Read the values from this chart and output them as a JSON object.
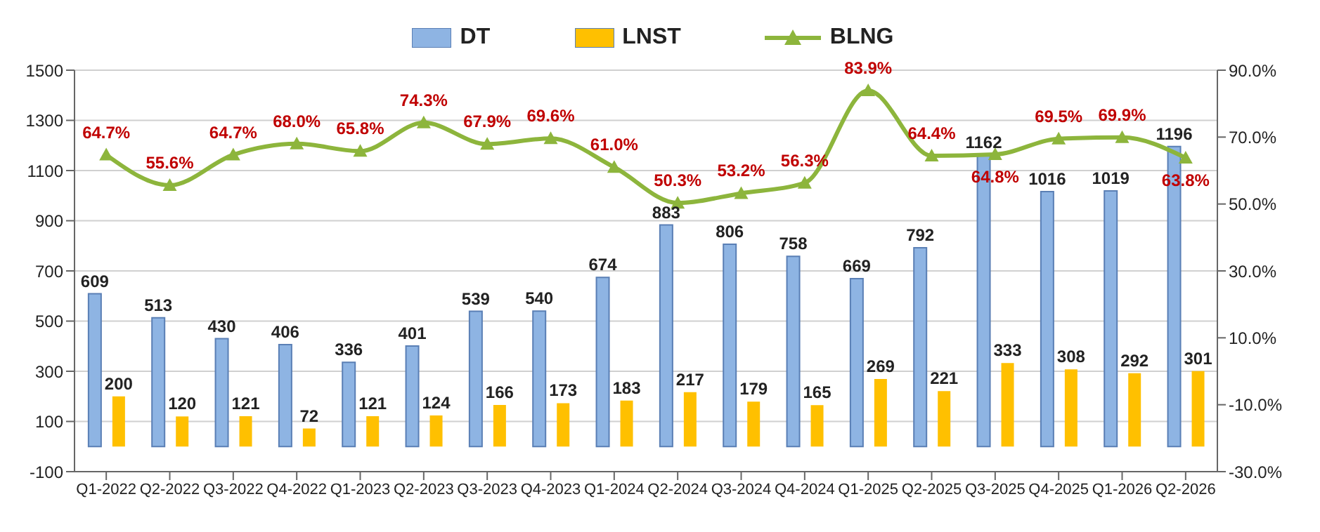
{
  "chart_data": {
    "type": "bar",
    "categories": [
      "Q1-2022",
      "Q2-2022",
      "Q3-2022",
      "Q4-2022",
      "Q1-2023",
      "Q2-2023",
      "Q3-2023",
      "Q4-2023",
      "Q1-2024",
      "Q2-2024",
      "Q3-2024",
      "Q4-2024",
      "Q1-2025",
      "Q2-2025",
      "Q3-2025",
      "Q4-2025",
      "Q1-2026",
      "Q2-2026"
    ],
    "series": [
      {
        "name": "DT",
        "color": "#8eb4e3",
        "values": [
          609,
          513,
          430,
          406,
          336,
          401,
          539,
          540,
          674,
          883,
          806,
          758,
          669,
          792,
          1162,
          1016,
          1019,
          1196
        ]
      },
      {
        "name": "LNST",
        "color": "#ffc000",
        "values": [
          200,
          120,
          121,
          72,
          121,
          124,
          166,
          173,
          183,
          217,
          179,
          165,
          269,
          221,
          333,
          308,
          292,
          301
        ]
      },
      {
        "name": "BLNG",
        "type": "line",
        "axis": "y2",
        "color": "#8db53c",
        "marker": "triangle",
        "values": [
          64.7,
          55.6,
          64.7,
          68.0,
          65.8,
          74.3,
          67.9,
          69.6,
          61.0,
          50.3,
          53.2,
          56.3,
          83.9,
          64.4,
          64.8,
          69.5,
          69.9,
          63.8
        ],
        "value_labels": [
          "64.7%",
          "55.6%",
          "64.7%",
          "68.0%",
          "65.8%",
          "74.3%",
          "67.9%",
          "69.6%",
          "61.0%",
          "50.3%",
          "53.2%",
          "56.3%",
          "83.9%",
          "64.4%",
          "64.8%",
          "69.5%",
          "69.9%",
          "63.8%"
        ]
      }
    ],
    "data_labels": true,
    "ylim": [
      -100,
      1500
    ],
    "yticks": [
      -100,
      100,
      300,
      500,
      700,
      900,
      1100,
      1300,
      1500
    ],
    "y2lim": [
      -30,
      90
    ],
    "y2ticks": [
      {
        "value": -30,
        "label": "-30.0%"
      },
      {
        "value": -10,
        "label": "-10.0%"
      },
      {
        "value": 10,
        "label": "10.0%"
      },
      {
        "value": 30,
        "label": "30.0%"
      },
      {
        "value": 50,
        "label": "50.0%"
      },
      {
        "value": 70,
        "label": "70.0%"
      },
      {
        "value": 90,
        "label": "90.0%"
      }
    ],
    "grid": "y",
    "legend": "top"
  }
}
